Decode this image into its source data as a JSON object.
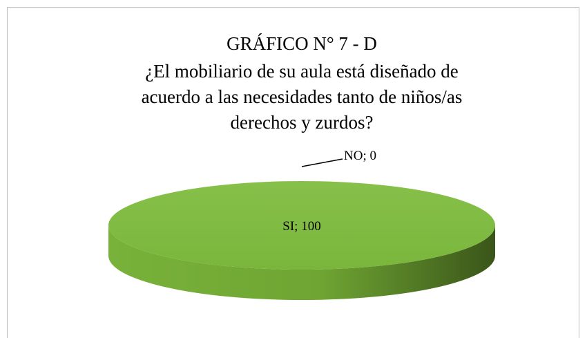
{
  "chart_data": {
    "type": "pie3d",
    "title": "GRÁFICO N° 7 - D",
    "subtitle": [
      "¿El mobiliario de su aula está diseñado de",
      "acuerdo a las necesidades tanto de niños/as",
      "derechos y zurdos?"
    ],
    "values": [
      100,
      0
    ],
    "value_labels": [
      "SI; 100",
      "NO; 0"
    ],
    "colors": [
      "#86bf45",
      "#86bf45"
    ]
  }
}
